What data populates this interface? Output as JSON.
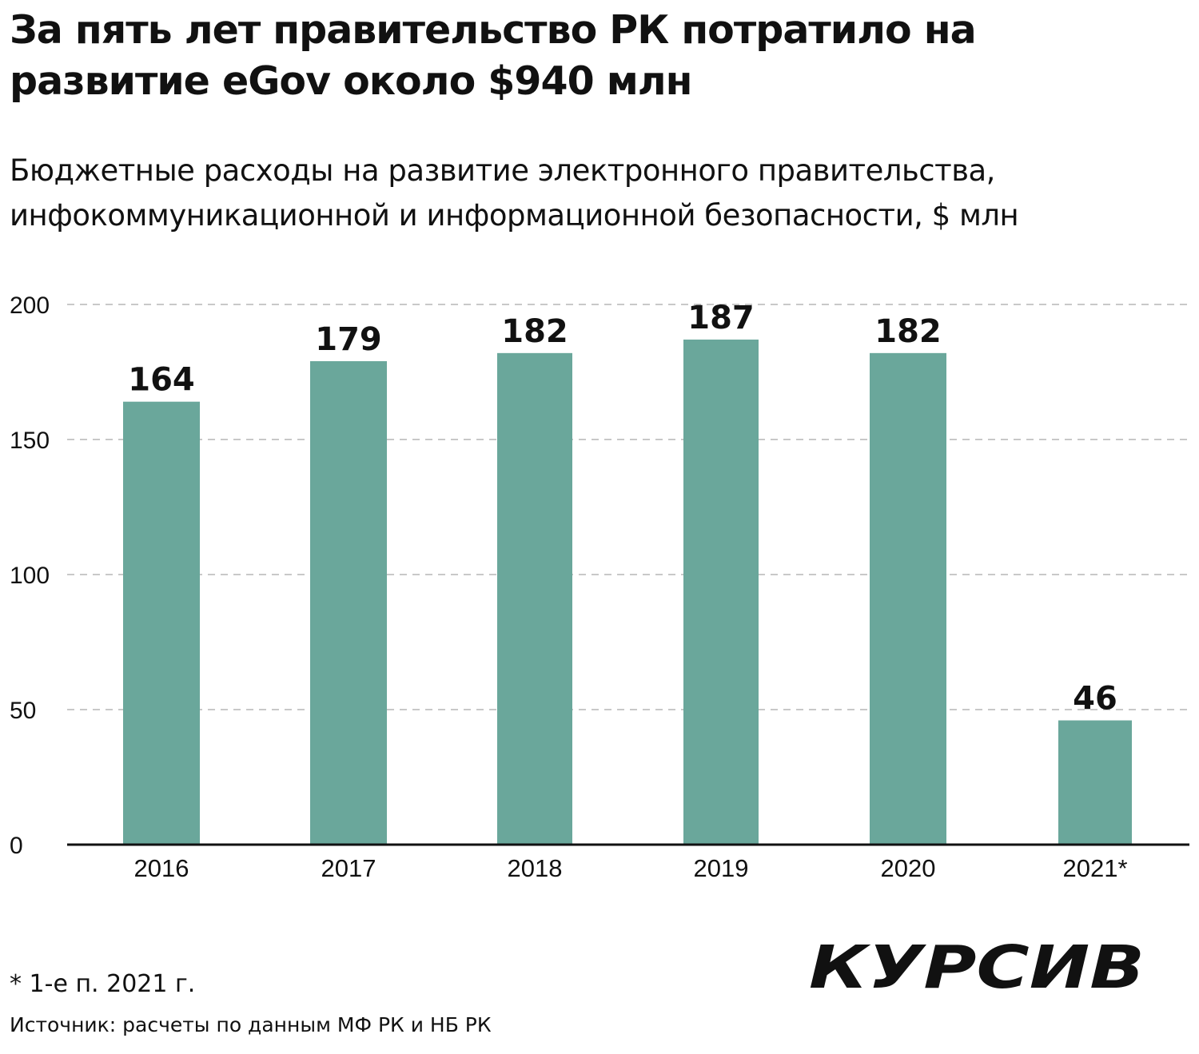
{
  "header": {
    "title": "За пять лет правительство РК потратило на развитие eGov около $940 млн",
    "subtitle": "Бюджетные расходы на развитие электронного правительства, инфокоммуникационной и информационной безопасности, $ млн"
  },
  "footer": {
    "footnote": "* 1-е п. 2021 г.",
    "source": "Источник: расчеты по данным МФ РК и НБ РК",
    "logo_text": "КУРСИВ"
  },
  "colors": {
    "bar": "#6aa79b",
    "grid": "#b5b5b5",
    "axis": "#111111",
    "text": "#111111"
  },
  "chart_data": {
    "type": "bar",
    "categories": [
      "2016",
      "2017",
      "2018",
      "2019",
      "2020",
      "2021*"
    ],
    "values": [
      164,
      179,
      182,
      187,
      182,
      46
    ],
    "data_labels": [
      "164",
      "179",
      "182",
      "187",
      "182",
      "46"
    ],
    "ylim": [
      0,
      200
    ],
    "yticks": [
      0,
      50,
      100,
      150,
      200
    ],
    "grid": true,
    "xlabel": "",
    "ylabel": ""
  }
}
